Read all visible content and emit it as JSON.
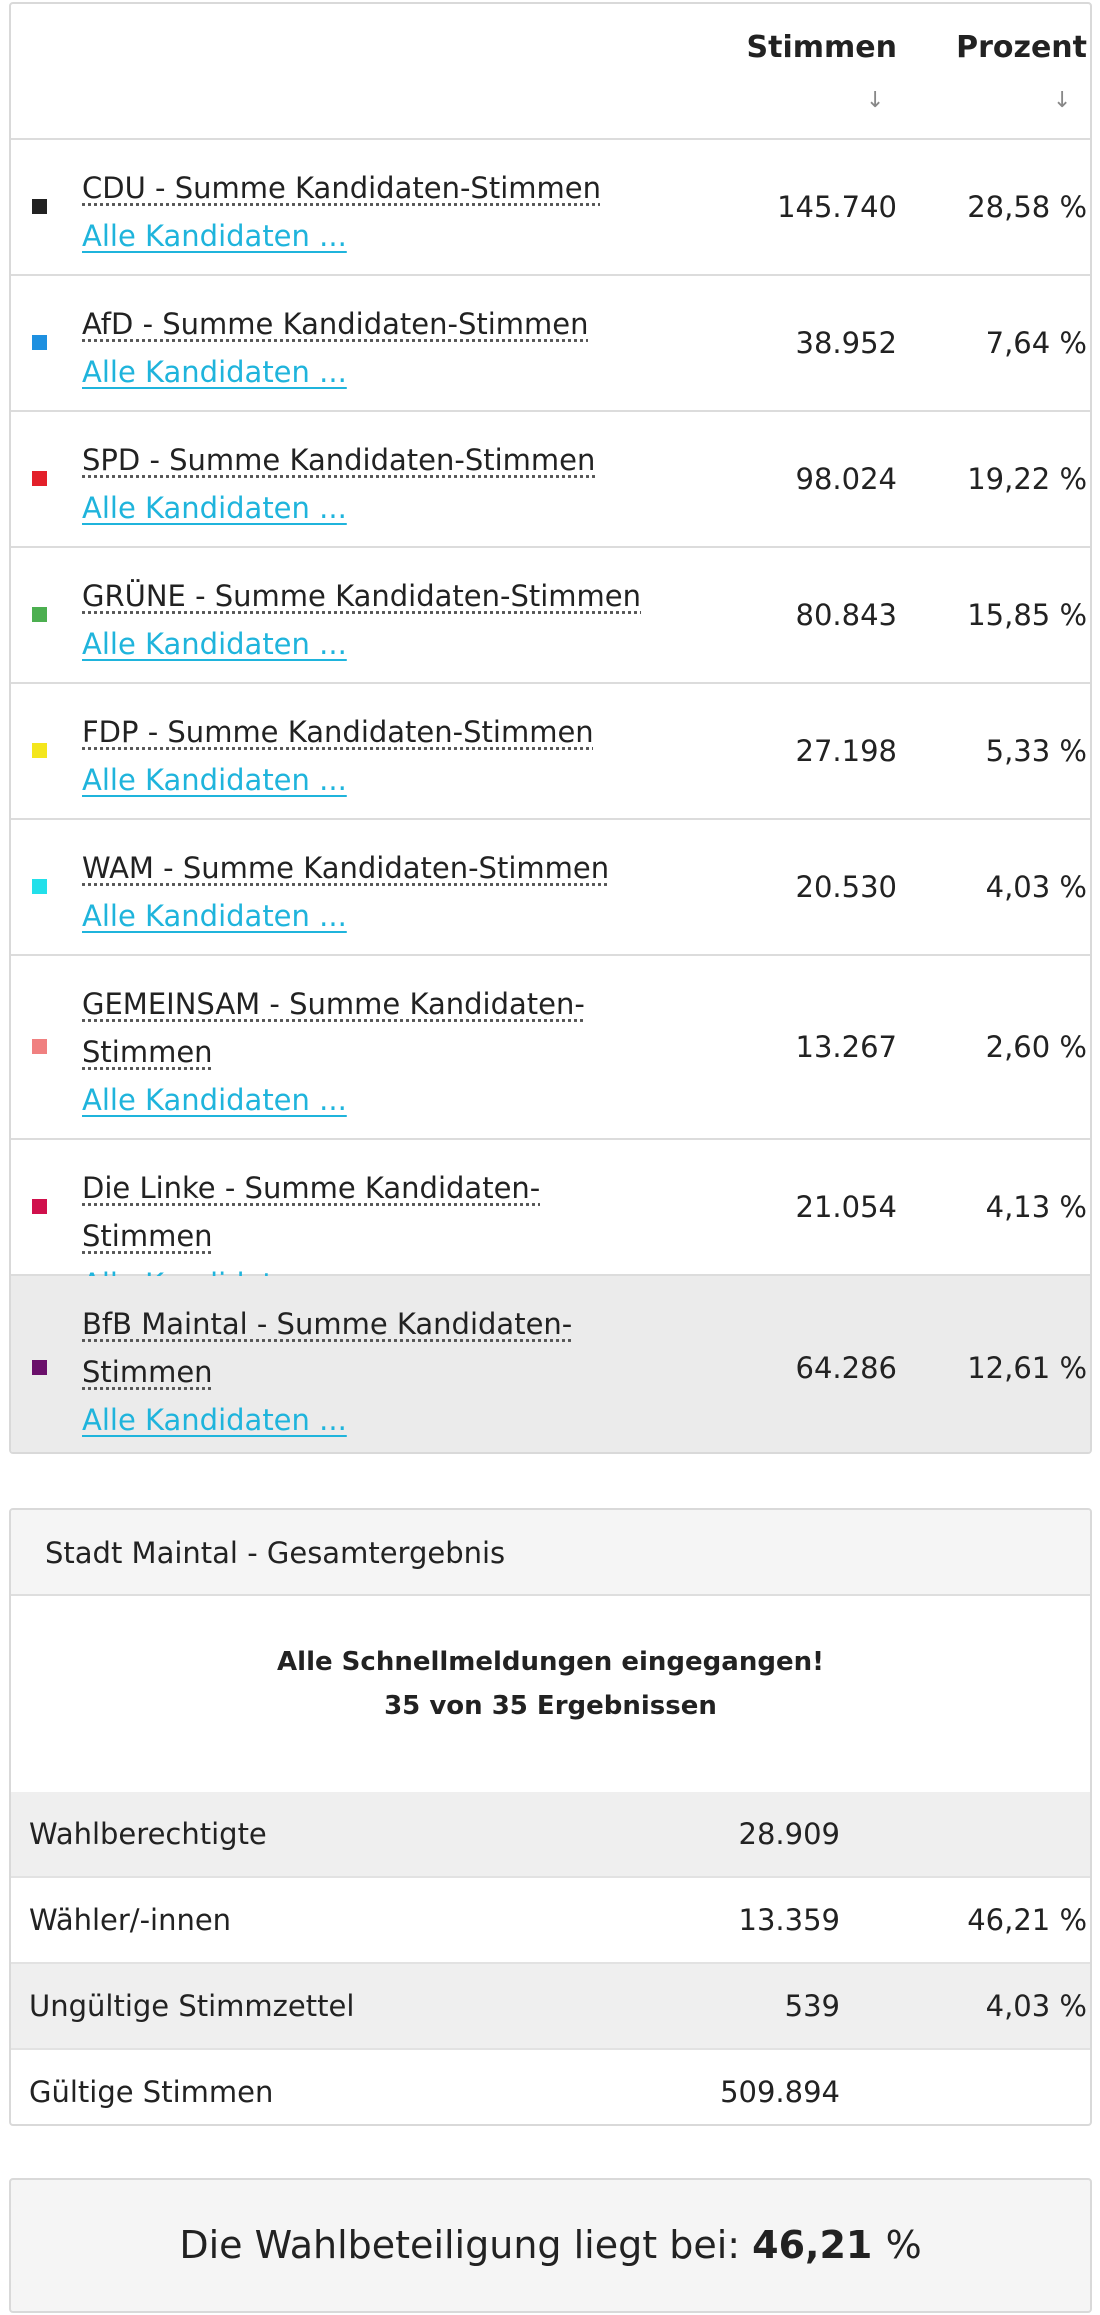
{
  "table": {
    "header_votes": "Stimmen",
    "header_percent": "Prozent",
    "sort_icon": "↓"
  },
  "parties": [
    {
      "name": "CDU - Summe Kandidaten-Stimmen",
      "link": "Alle Kandidaten ...",
      "votes": "145.740",
      "percent": "28,58 %",
      "color": "#222222"
    },
    {
      "name": "AfD - Summe Kandidaten-Stimmen",
      "link": "Alle Kandidaten ...",
      "votes": "38.952",
      "percent": "7,64 %",
      "color": "#1e90e0"
    },
    {
      "name": "SPD - Summe Kandidaten-Stimmen",
      "link": "Alle Kandidaten ...",
      "votes": "98.024",
      "percent": "19,22 %",
      "color": "#e3202a"
    },
    {
      "name": "GRÜNE - Summe Kandidaten-Stimmen",
      "link": "Alle Kandidaten ...",
      "votes": "80.843",
      "percent": "15,85 %",
      "color": "#4caf50"
    },
    {
      "name": "FDP - Summe Kandidaten-Stimmen",
      "link": "Alle Kandidaten ...",
      "votes": "27.198",
      "percent": "5,33 %",
      "color": "#f4e61c"
    },
    {
      "name": "WAM - Summe Kandidaten-Stimmen",
      "link": "Alle Kandidaten ...",
      "votes": "20.530",
      "percent": "4,03 %",
      "color": "#22e0ea"
    },
    {
      "name": "GEMEINSAM - Summe Kandidaten-Stimmen",
      "link": "Alle Kandidaten ...",
      "votes": "13.267",
      "percent": "2,60 %",
      "color": "#f08080"
    },
    {
      "name": "Die Linke - Summe Kandidaten-Stimmen",
      "link": "Alle Kandidaten ...",
      "votes": "21.054",
      "percent": "4,13 %",
      "color": "#d0104c"
    },
    {
      "name": "BfB Maintal - Summe Kandidaten-Stimmen",
      "link": "Alle Kandidaten ...",
      "votes": "64.286",
      "percent": "12,61 %",
      "color": "#6a0f6a"
    }
  ],
  "total": {
    "title": "Stadt Maintal - Gesamtergebnis",
    "notice_line1": "Alle Schnellmeldungen eingegangen!",
    "notice_line2": "35 von 35 Ergebnissen",
    "stats": [
      {
        "label": "Wahlberechtigte",
        "value": "28.909",
        "percent": ""
      },
      {
        "label": "Wähler/-innen",
        "value": "13.359",
        "percent": "46,21 %"
      },
      {
        "label": "Ungültige Stimmzettel",
        "value": "539",
        "percent": "4,03 %"
      },
      {
        "label": "Gültige Stimmen",
        "value": "509.894",
        "percent": ""
      }
    ]
  },
  "turnout": {
    "label": "Die Wahlbeteiligung liegt bei:",
    "value": "46,21",
    "unit": "%"
  }
}
